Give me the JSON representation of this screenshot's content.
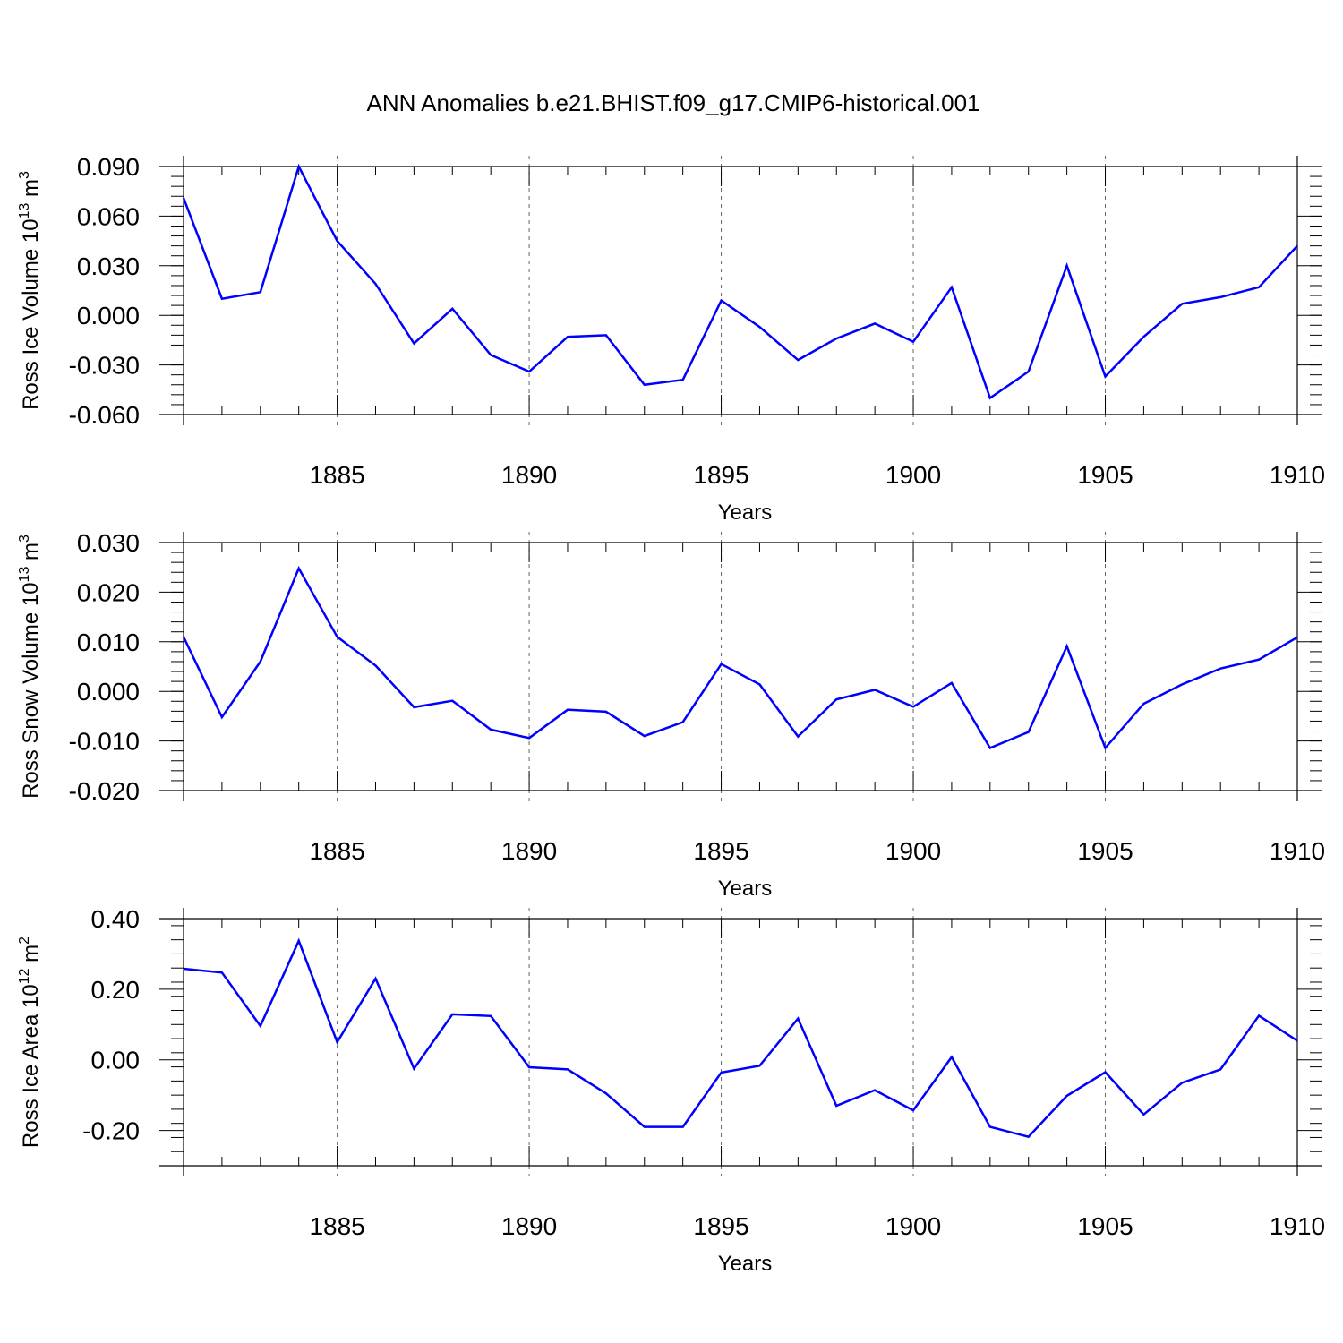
{
  "figure": {
    "title": "ANN Anomalies b.e21.BHIST.f09_g17.CMIP6-historical.001"
  },
  "colors": {
    "line": "#0000ff",
    "axis": "#000000",
    "grid": "#666666"
  },
  "chart_data": [
    {
      "type": "line",
      "title": "",
      "xlabel": "Years",
      "ylabel_main": "Ross Ice Volume 10",
      "ylabel_exp": "13",
      "ylabel_unit": " m",
      "ylabel_unit_exp": "3",
      "xlim": [
        1881,
        1910
      ],
      "ylim": [
        -0.06,
        0.09
      ],
      "yticks": [
        "-0.060",
        "-0.030",
        "0.000",
        "0.030",
        "0.060",
        "0.090"
      ],
      "ytick_values": [
        -0.06,
        -0.03,
        0.0,
        0.03,
        0.06,
        0.09
      ],
      "xticks": [
        "1885",
        "1890",
        "1895",
        "1900",
        "1905",
        "1910"
      ],
      "xtick_values": [
        1885,
        1890,
        1895,
        1900,
        1905,
        1910
      ],
      "grid": "x-dashed",
      "x": [
        1881,
        1882,
        1883,
        1884,
        1885,
        1886,
        1887,
        1888,
        1889,
        1890,
        1891,
        1892,
        1893,
        1894,
        1895,
        1896,
        1897,
        1898,
        1899,
        1900,
        1901,
        1902,
        1903,
        1904,
        1905,
        1906,
        1907,
        1908,
        1909,
        1910
      ],
      "series": [
        {
          "values": [
            0.071,
            0.01,
            0.014,
            0.09,
            0.045,
            0.019,
            -0.017,
            0.004,
            -0.024,
            -0.034,
            -0.013,
            -0.012,
            -0.042,
            -0.039,
            0.009,
            -0.007,
            -0.027,
            -0.014,
            -0.005,
            -0.016,
            0.017,
            -0.05,
            -0.034,
            0.03,
            -0.037,
            -0.013,
            0.007,
            0.011,
            0.017,
            0.042
          ]
        }
      ]
    },
    {
      "type": "line",
      "title": "",
      "xlabel": "Years",
      "ylabel_main": "Ross Snow Volume 10",
      "ylabel_exp": "13",
      "ylabel_unit": " m",
      "ylabel_unit_exp": "3",
      "xlim": [
        1881,
        1910
      ],
      "ylim": [
        -0.02,
        0.03
      ],
      "yticks": [
        "-0.020",
        "-0.010",
        "0.000",
        "0.010",
        "0.020",
        "0.030"
      ],
      "ytick_values": [
        -0.02,
        -0.01,
        0.0,
        0.01,
        0.02,
        0.03
      ],
      "xticks": [
        "1885",
        "1890",
        "1895",
        "1900",
        "1905",
        "1910"
      ],
      "xtick_values": [
        1885,
        1890,
        1895,
        1900,
        1905,
        1910
      ],
      "grid": "x-dashed",
      "x": [
        1881,
        1882,
        1883,
        1884,
        1885,
        1886,
        1887,
        1888,
        1889,
        1890,
        1891,
        1892,
        1893,
        1894,
        1895,
        1896,
        1897,
        1898,
        1899,
        1900,
        1901,
        1902,
        1903,
        1904,
        1905,
        1906,
        1907,
        1908,
        1909,
        1910
      ],
      "series": [
        {
          "values": [
            0.011,
            -0.0052,
            0.006,
            0.0248,
            0.011,
            0.0052,
            -0.0032,
            -0.0019,
            -0.0077,
            -0.0094,
            -0.0037,
            -0.0041,
            -0.009,
            -0.0062,
            0.0055,
            0.0014,
            -0.0091,
            -0.0016,
            0.0003,
            -0.0031,
            0.0017,
            -0.0114,
            -0.0082,
            0.0091,
            -0.0114,
            -0.0025,
            0.0014,
            0.0046,
            0.0064,
            0.0109
          ]
        }
      ]
    },
    {
      "type": "line",
      "title": "",
      "xlabel": "Years",
      "ylabel_main": "Ross Ice Area 10",
      "ylabel_exp": "12",
      "ylabel_unit": " m",
      "ylabel_unit_exp": "2",
      "xlim": [
        1881,
        1910
      ],
      "ylim": [
        -0.3,
        0.4
      ],
      "yticks": [
        "-0.20",
        "0.00",
        "0.20",
        "0.40"
      ],
      "ytick_values": [
        -0.2,
        0.0,
        0.2,
        0.4
      ],
      "xticks": [
        "1885",
        "1890",
        "1895",
        "1900",
        "1905",
        "1910"
      ],
      "xtick_values": [
        1885,
        1890,
        1895,
        1900,
        1905,
        1910
      ],
      "grid": "x-dashed",
      "x": [
        1881,
        1882,
        1883,
        1884,
        1885,
        1886,
        1887,
        1888,
        1889,
        1890,
        1891,
        1892,
        1893,
        1894,
        1895,
        1896,
        1897,
        1898,
        1899,
        1900,
        1901,
        1902,
        1903,
        1904,
        1905,
        1906,
        1907,
        1908,
        1909,
        1910
      ],
      "series": [
        {
          "values": [
            0.258,
            0.247,
            0.096,
            0.337,
            0.05,
            0.23,
            -0.025,
            0.129,
            0.124,
            -0.021,
            -0.027,
            -0.095,
            -0.19,
            -0.19,
            -0.036,
            -0.017,
            0.117,
            -0.13,
            -0.086,
            -0.143,
            0.008,
            -0.19,
            -0.218,
            -0.102,
            -0.035,
            -0.155,
            -0.065,
            -0.027,
            0.125,
            0.054
          ]
        }
      ]
    }
  ]
}
